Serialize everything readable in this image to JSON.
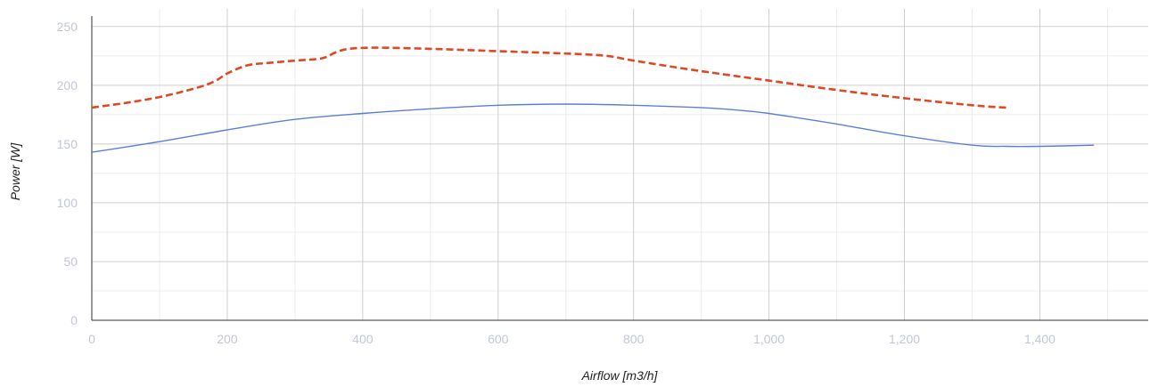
{
  "chart_data": {
    "type": "line",
    "title": "",
    "xlabel": "Airflow [m3/h]",
    "ylabel": "Power [W]",
    "xlim": [
      0,
      1560
    ],
    "ylim": [
      0,
      265
    ],
    "x_ticks": [
      0,
      200,
      400,
      600,
      800,
      1000,
      1200,
      1400
    ],
    "x_tick_labels": [
      "0",
      "200",
      "400",
      "600",
      "800",
      "1,000",
      "1,200",
      "1,400"
    ],
    "y_ticks": [
      0,
      50,
      100,
      150,
      200,
      250
    ],
    "y_tick_labels": [
      "0",
      "50",
      "100",
      "150",
      "200",
      "250"
    ],
    "grid": true,
    "legend": "none",
    "series": [
      {
        "color": "#dc4a23",
        "style": "dashed",
        "x": [
          0,
          50,
          100,
          150,
          180,
          200,
          230,
          260,
          300,
          340,
          360,
          380,
          420,
          500,
          600,
          700,
          760,
          800,
          900,
          1000,
          1100,
          1200,
          1300,
          1350
        ],
        "y": [
          181,
          185,
          190,
          197,
          203,
          210,
          217,
          219,
          221,
          223,
          228,
          231,
          232,
          231,
          229,
          227,
          225,
          221,
          212,
          204,
          196,
          189,
          183,
          181
        ]
      },
      {
        "color": "#5b7fd9",
        "style": "solid",
        "x": [
          0,
          100,
          200,
          300,
          400,
          500,
          600,
          700,
          800,
          900,
          950,
          1000,
          1100,
          1200,
          1300,
          1350,
          1400,
          1480
        ],
        "y": [
          143,
          152,
          162,
          171,
          176,
          180,
          183,
          184,
          183,
          181,
          179,
          176,
          167,
          157,
          149,
          148,
          148,
          149
        ]
      }
    ]
  }
}
